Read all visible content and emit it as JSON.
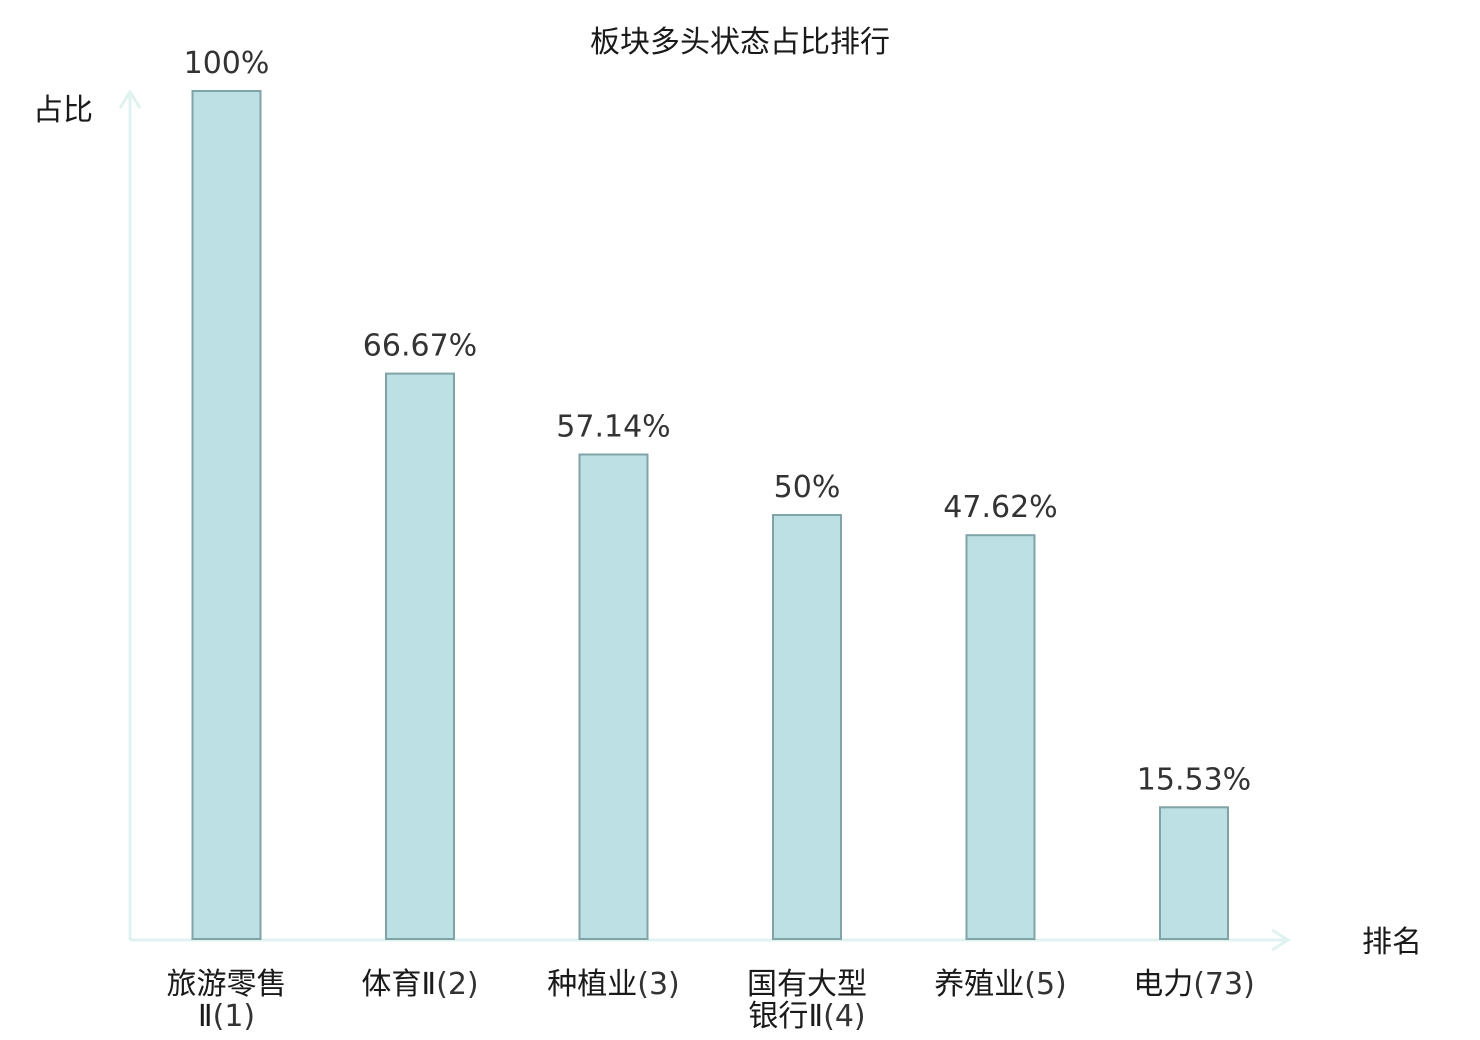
{
  "chart_data": {
    "type": "bar",
    "title": "板块多头状态占比排行",
    "ylabel": "占比",
    "xlabel": "排名",
    "categories": [
      {
        "name_lines": [
          "旅游零售",
          "Ⅱ"
        ],
        "rank": "(1)",
        "highlight": false
      },
      {
        "name_lines": [
          "体育Ⅱ"
        ],
        "rank": "(2)",
        "highlight": false
      },
      {
        "name_lines": [
          "种植业"
        ],
        "rank": "(3)",
        "highlight": false
      },
      {
        "name_lines": [
          "国有大型",
          "银行Ⅱ"
        ],
        "rank": "(4)",
        "highlight": false
      },
      {
        "name_lines": [
          "养殖业"
        ],
        "rank": "(5)",
        "highlight": false
      },
      {
        "name_lines": [
          "电力"
        ],
        "rank": "(73)",
        "highlight": true
      }
    ],
    "values": [
      100,
      66.67,
      57.14,
      50,
      47.62,
      15.53
    ],
    "value_labels": [
      "100%",
      "66.67%",
      "57.14%",
      "50%",
      "47.62%",
      "15.53%"
    ],
    "ylim": [
      0,
      100
    ],
    "grid": false,
    "colors": {
      "bar_fill": "#bce0e3",
      "bar_stroke": "#7fa3a6",
      "axis": "#e0f2f0",
      "highlight_text": "#e8161b",
      "text": "#1a1a1a",
      "value_text": "#333333"
    }
  }
}
